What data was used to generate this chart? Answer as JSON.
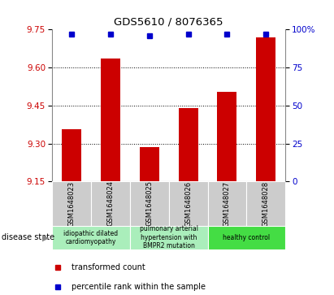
{
  "title": "GDS5610 / 8076365",
  "samples": [
    "GSM1648023",
    "GSM1648024",
    "GSM1648025",
    "GSM1648026",
    "GSM1648027",
    "GSM1648028"
  ],
  "bar_values": [
    9.355,
    9.635,
    9.285,
    9.44,
    9.505,
    9.72
  ],
  "percentile_values": [
    97,
    97,
    96,
    97,
    97,
    97
  ],
  "ylim_left": [
    9.15,
    9.75
  ],
  "ylim_right": [
    0,
    100
  ],
  "yticks_left": [
    9.15,
    9.3,
    9.45,
    9.6,
    9.75
  ],
  "yticks_right": [
    0,
    25,
    50,
    75,
    100
  ],
  "bar_color": "#cc0000",
  "dot_color": "#0000cc",
  "grid_color": "#000000",
  "disease_groups": [
    {
      "label": "idiopathic dilated\ncardiomyopathy",
      "samples": [
        0,
        1
      ],
      "color": "#aaeebb"
    },
    {
      "label": "pulmonary arterial\nhypertension with\nBMPR2 mutation",
      "samples": [
        2,
        3
      ],
      "color": "#aaeebb"
    },
    {
      "label": "healthy control",
      "samples": [
        4,
        5
      ],
      "color": "#44dd44"
    }
  ],
  "legend_items": [
    {
      "label": "transformed count",
      "color": "#cc0000"
    },
    {
      "label": "percentile rank within the sample",
      "color": "#0000cc"
    }
  ],
  "bar_width": 0.5,
  "tick_label_color_left": "#cc0000",
  "tick_label_color_right": "#0000cc",
  "title_color": "#000000",
  "sample_box_color": "#cccccc",
  "dotted_yticks": [
    9.3,
    9.45,
    9.6
  ]
}
